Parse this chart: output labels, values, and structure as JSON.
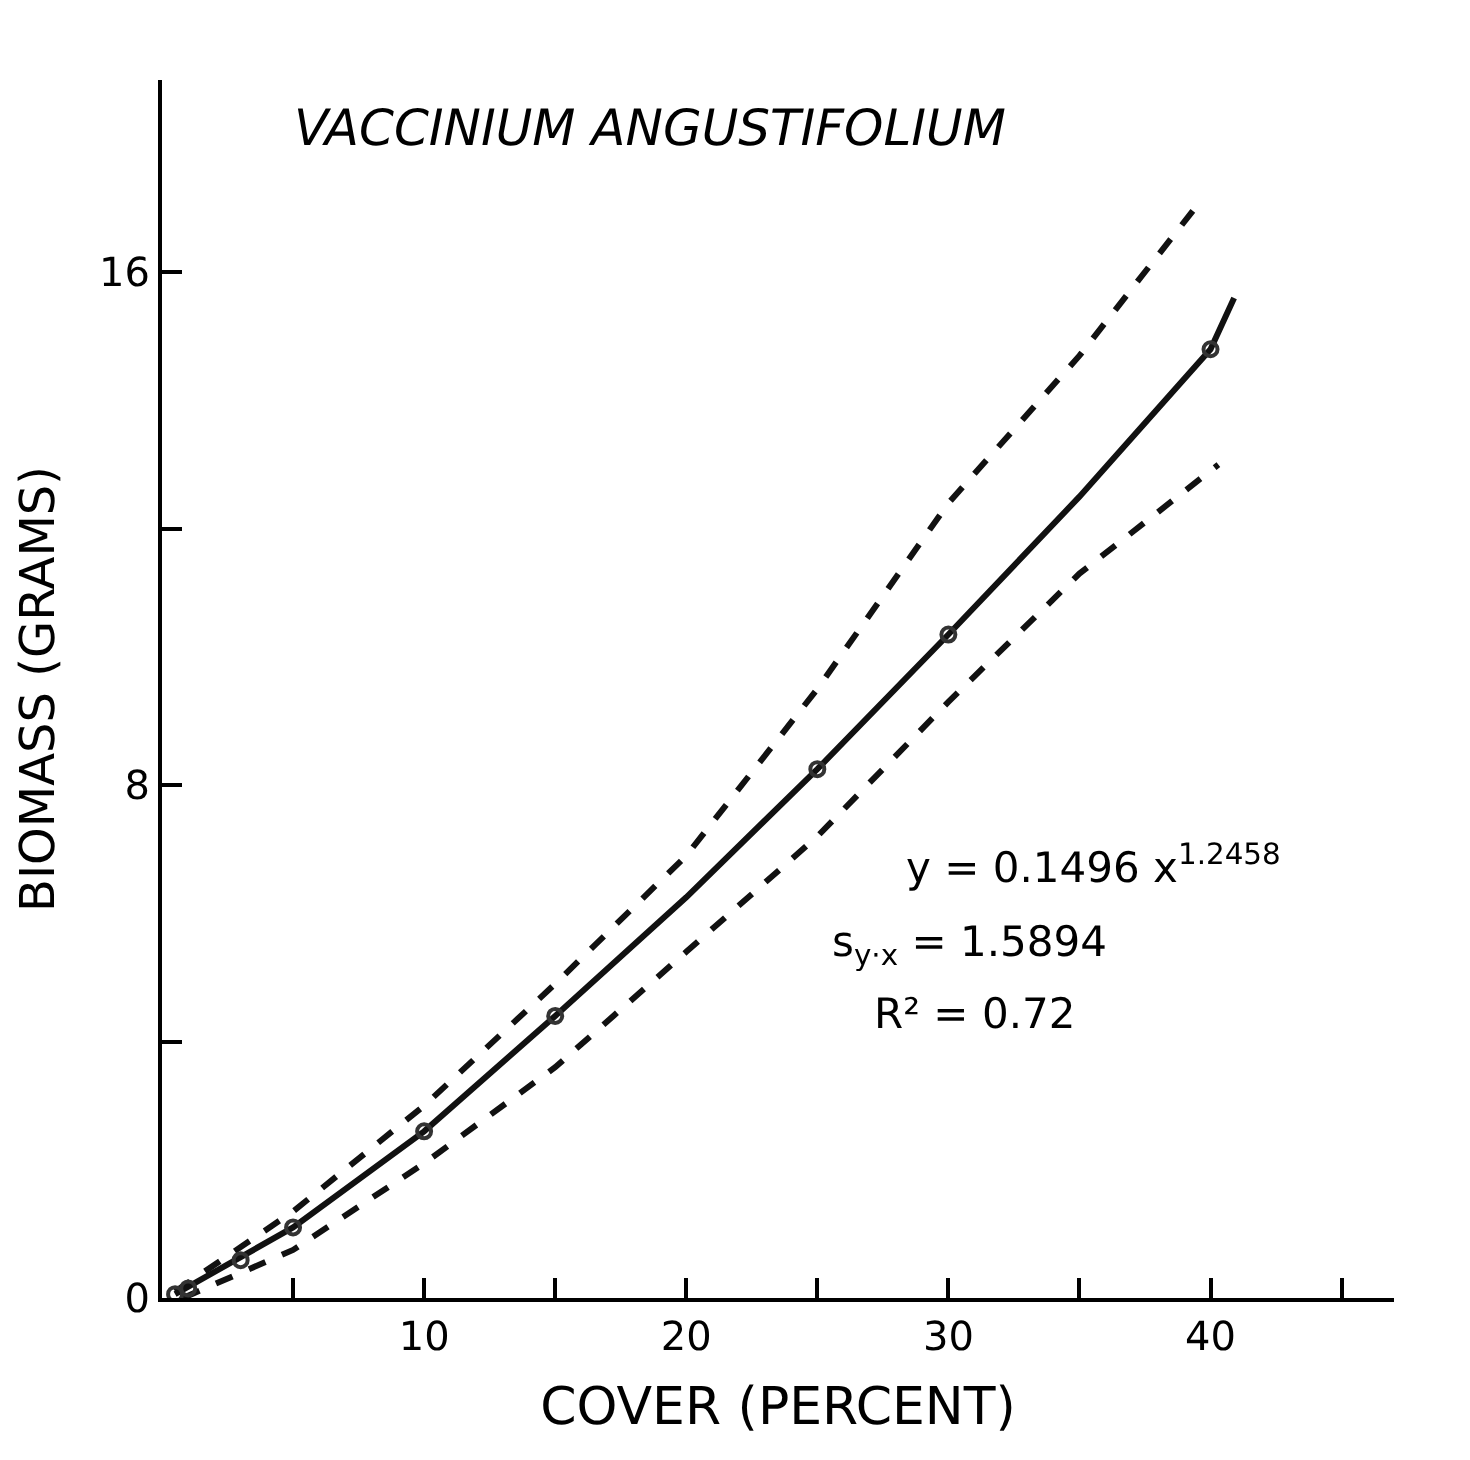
{
  "chart_data": {
    "type": "line",
    "title": "VACCINIUM ANGUSTIFOLIUM",
    "xlabel": "COVER (PERCENT)",
    "ylabel": "BIOMASS (GRAMS)",
    "xlim": [
      0,
      47
    ],
    "ylim": [
      0,
      19
    ],
    "xticks": [
      {
        "value": 5,
        "label": null
      },
      10,
      {
        "value": 15,
        "label": null
      },
      20,
      {
        "value": 25,
        "label": null
      },
      30,
      {
        "value": 35,
        "label": null
      },
      40,
      {
        "value": 45,
        "label": null
      }
    ],
    "yticks": [
      0,
      {
        "value": 4,
        "label": null
      },
      8,
      {
        "value": 12,
        "label": null
      },
      16
    ],
    "series": [
      {
        "color": "#111111",
        "line_style": "dashed",
        "marker": "none",
        "x": [
          0.5,
          5,
          10,
          15,
          20,
          25,
          30,
          35,
          39.5
        ],
        "values": [
          0.1,
          1.35,
          3.0,
          4.9,
          6.9,
          9.5,
          12.4,
          14.7,
          17.05
        ]
      },
      {
        "color": "#111111",
        "line_style": "dashed",
        "marker": "none",
        "x": [
          0.8,
          5,
          10,
          15,
          20,
          25,
          30,
          35,
          40.3
        ],
        "values": [
          0,
          0.75,
          2.1,
          3.6,
          5.4,
          7.2,
          9.3,
          11.3,
          13.0
        ]
      },
      {
        "color": "#111111",
        "line_style": "solid",
        "marker": "none",
        "x": [
          0.5,
          5,
          10,
          15,
          20,
          25,
          30,
          35,
          40,
          40.9
        ],
        "values": [
          0.06,
          1.1,
          2.6,
          4.4,
          6.25,
          8.25,
          10.35,
          12.5,
          14.8,
          15.6
        ]
      },
      {
        "type": "scatter",
        "color": "#333333",
        "marker": "circle",
        "x": [
          0.5,
          1,
          3,
          5,
          10,
          15,
          25,
          30,
          40
        ],
        "values": [
          0.06,
          0.15,
          0.59,
          1.1,
          2.6,
          4.4,
          8.25,
          10.35,
          14.8
        ]
      }
    ],
    "annotations": [
      "y = 0.1496 x$^{1.2458}$",
      "s$_{y·x}$ = 1.5894",
      "R² = 0.72"
    ]
  }
}
